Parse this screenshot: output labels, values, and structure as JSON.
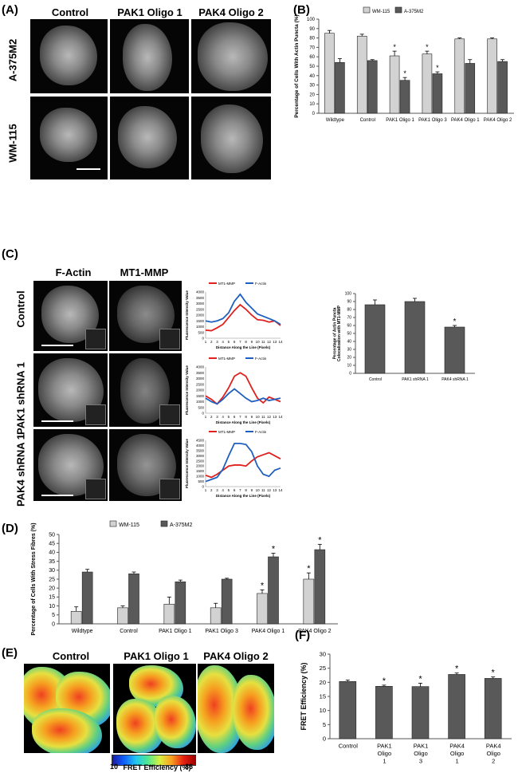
{
  "panelA": {
    "label": "(A)",
    "columns": [
      "Control",
      "PAK1 Oligo 1",
      "PAK4 Oligo 2"
    ],
    "rows": [
      "A-375M2",
      "WM-115"
    ]
  },
  "panelB": {
    "label": "(B)",
    "chart_data": {
      "type": "bar",
      "categories": [
        "Wildtype",
        "Control",
        "PAK1 Oligo 1",
        "PAK1 Oligo 3",
        "PAK4 Oligo 1",
        "PAK4 Oligo 2"
      ],
      "series": [
        {
          "name": "WM-115",
          "values": [
            85,
            82,
            61,
            63,
            79,
            79
          ],
          "errors": [
            3,
            2,
            5,
            3,
            1,
            1
          ],
          "color": "#d2d2d2",
          "significant": [
            false,
            false,
            true,
            true,
            false,
            false
          ]
        },
        {
          "name": "A-375M2",
          "values": [
            54,
            56,
            35,
            42,
            53,
            55
          ],
          "errors": [
            4,
            1,
            3,
            2,
            4,
            2
          ],
          "color": "#595959",
          "significant": [
            false,
            false,
            true,
            true,
            false,
            false
          ]
        }
      ],
      "ylabel": "Percentage of Cells With Actin Puncta (%)",
      "ylim": [
        0,
        100
      ],
      "yticks": [
        0,
        10,
        20,
        30,
        40,
        50,
        60,
        70,
        80,
        90,
        100
      ],
      "legend": "top"
    }
  },
  "panelC": {
    "label": "(C)",
    "columns": [
      "F-Actin",
      "MT1-MMP"
    ],
    "rows": [
      "Control",
      "PAK1 shRNA 1",
      "PAK4 shRNA 1"
    ],
    "line_charts": [
      {
        "type": "line",
        "legend": [
          "MT1-MMP",
          "F-Actin"
        ],
        "ylabel": "Fluorescence Intensity Value",
        "xlabel": "Distance Along the Line (Pixels)",
        "x": [
          1,
          2,
          3,
          4,
          5,
          6,
          7,
          8,
          9,
          10,
          11,
          12,
          13,
          14
        ],
        "ylim": [
          0,
          4000
        ],
        "yticks": [
          0,
          500,
          1000,
          1500,
          2000,
          2500,
          3000,
          3500,
          4000
        ],
        "series": [
          {
            "name": "MT1-MMP",
            "color": "#e0201c",
            "values": [
              700,
              650,
              900,
              1200,
              1800,
              2400,
              2900,
              2500,
              2000,
              1600,
              1550,
              1400,
              1500,
              1100
            ]
          },
          {
            "name": "F-Actin",
            "color": "#1f5fbf",
            "values": [
              1500,
              1400,
              1500,
              1700,
              2200,
              3200,
              3800,
              3100,
              2600,
              2100,
              1900,
              1700,
              1500,
              1200
            ]
          }
        ]
      },
      {
        "type": "line",
        "legend": [
          "MT1-MMP",
          "F-Actin"
        ],
        "ylabel": "Fluorescence Intensity Value",
        "xlabel": "Distance Along the Line (Pixels)",
        "x": [
          1,
          2,
          3,
          4,
          5,
          6,
          7,
          8,
          9,
          10,
          11,
          12,
          13,
          14
        ],
        "ylim": [
          0,
          4000
        ],
        "yticks": [
          0,
          500,
          1000,
          1500,
          2000,
          2500,
          3000,
          3500,
          4000
        ],
        "series": [
          {
            "name": "MT1-MMP",
            "color": "#e0201c",
            "values": [
              1500,
              1200,
              800,
              1400,
              2200,
              3200,
              3500,
              3200,
              2200,
              1300,
              900,
              1400,
              1200,
              1000
            ]
          },
          {
            "name": "F-Actin",
            "color": "#1f5fbf",
            "values": [
              1300,
              1000,
              800,
              1200,
              1700,
              2100,
              1700,
              1300,
              1000,
              1100,
              1300,
              1100,
              1200,
              1300
            ]
          }
        ]
      },
      {
        "type": "line",
        "legend": [
          "MT1-MMP",
          "F-Actin"
        ],
        "ylabel": "Fluorescence Intensity Value",
        "xlabel": "Distance Along the Line (Pixels)",
        "x": [
          1,
          2,
          3,
          4,
          5,
          6,
          7,
          8,
          9,
          10,
          11,
          12,
          13,
          14
        ],
        "ylim": [
          0,
          4500
        ],
        "yticks": [
          0,
          500,
          1000,
          1500,
          2000,
          2500,
          3000,
          3500,
          4000,
          4500
        ],
        "series": [
          {
            "name": "MT1-MMP",
            "color": "#e0201c",
            "values": [
              1100,
              900,
              1200,
              1600,
              2000,
              2100,
              2100,
              2000,
              2500,
              2900,
              3100,
              3300,
              3000,
              2700
            ]
          },
          {
            "name": "F-Actin",
            "color": "#1f5fbf",
            "values": [
              500,
              700,
              900,
              1700,
              3000,
              4200,
              4200,
              4100,
              3400,
              2000,
              1200,
              1000,
              1600,
              1800
            ]
          }
        ]
      }
    ],
    "bar_chart": {
      "type": "bar",
      "categories": [
        "Control",
        "PAK1 shRNA 1",
        "PAK4 shRNA 1"
      ],
      "values": [
        86,
        90,
        58
      ],
      "errors": [
        6,
        4,
        2
      ],
      "significant": [
        false,
        false,
        true
      ],
      "ylabel": "Percentage of Actin Puncta Colocalization with MT1-MMP",
      "ylim": [
        0,
        100
      ],
      "yticks": [
        0,
        10,
        20,
        30,
        40,
        50,
        60,
        70,
        80,
        90,
        100
      ]
    }
  },
  "panelD": {
    "label": "(D)",
    "chart_data": {
      "type": "bar",
      "categories": [
        "Wildtype",
        "Control",
        "PAK1 Oligo 1",
        "PAK1 Oligo 3",
        "PAK4 Oligo 1",
        "PAK4 Oligo 2"
      ],
      "series": [
        {
          "name": "WM-115",
          "values": [
            7,
            9,
            11,
            9,
            17,
            25
          ],
          "errors": [
            2.5,
            1,
            4,
            2.5,
            2,
            3.5
          ],
          "color": "#d2d2d2",
          "significant": [
            false,
            false,
            false,
            false,
            true,
            true
          ]
        },
        {
          "name": "A-375M2",
          "values": [
            29,
            28,
            23.5,
            25,
            37.5,
            41.5
          ],
          "errors": [
            1.5,
            1,
            1,
            0.5,
            2,
            3
          ],
          "color": "#595959",
          "significant": [
            false,
            false,
            false,
            false,
            true,
            true
          ]
        }
      ],
      "ylabel": "Percentage of Cells With Stress Fibres (%)",
      "ylim": [
        0,
        50
      ],
      "yticks": [
        0,
        5,
        10,
        15,
        20,
        25,
        30,
        35,
        40,
        45,
        50
      ],
      "legend": "top"
    }
  },
  "panelE": {
    "label": "(E)",
    "columns": [
      "Control",
      "PAK1 Oligo 1",
      "PAK4 Oligo 2"
    ],
    "colorbar_min": "10",
    "colorbar_max": "36",
    "colorbar_label": "FRET Efficiency (%)"
  },
  "panelF": {
    "label": "(F)",
    "chart_data": {
      "type": "bar",
      "categories": [
        "Control",
        "PAK1 Oligo 1",
        "PAK1 Oligo 3",
        "PAK4 Oligo 1",
        "PAK4 Oligo 2"
      ],
      "values": [
        20.3,
        18.6,
        18.5,
        22.8,
        21.4
      ],
      "errors": [
        0.5,
        0.4,
        1.2,
        0.5,
        0.5
      ],
      "significant": [
        false,
        true,
        true,
        true,
        true
      ],
      "ylabel": "FRET Efficiency (%)",
      "ylim": [
        0,
        30
      ],
      "yticks": [
        0,
        5,
        10,
        15,
        20,
        25,
        30
      ]
    }
  },
  "sig_mark": "*"
}
